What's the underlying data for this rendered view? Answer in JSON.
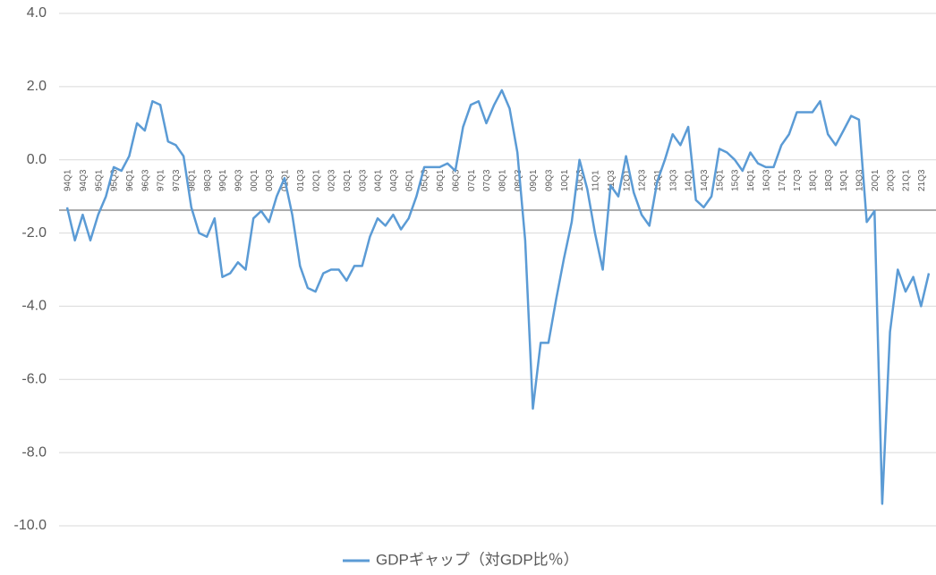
{
  "chart_data": {
    "type": "line",
    "legend_title": null,
    "categories": [
      "94Q1",
      null,
      "94Q3",
      null,
      "95Q1",
      null,
      "95Q3",
      null,
      "96Q1",
      null,
      "96Q3",
      null,
      "97Q1",
      null,
      "97Q3",
      null,
      "98Q1",
      null,
      "98Q3",
      null,
      "99Q1",
      null,
      "99Q3",
      null,
      "00Q1",
      null,
      "00Q3",
      null,
      "01Q1",
      null,
      "01Q3",
      null,
      "02Q1",
      null,
      "02Q3",
      null,
      "03Q1",
      null,
      "03Q3",
      null,
      "04Q1",
      null,
      "04Q3",
      null,
      "05Q1",
      null,
      "05Q3",
      null,
      "06Q1",
      null,
      "06Q3",
      null,
      "07Q1",
      null,
      "07Q3",
      null,
      "08Q1",
      null,
      "08Q3",
      null,
      "09Q1",
      null,
      "09Q3",
      null,
      "10Q1",
      null,
      "10Q3",
      null,
      "11Q1",
      null,
      "11Q3",
      null,
      "12Q1",
      null,
      "12Q3",
      null,
      "13Q1",
      null,
      "13Q3",
      null,
      "14Q1",
      null,
      "14Q3",
      null,
      "15Q1",
      null,
      "15Q3",
      null,
      "16Q1",
      null,
      "16Q3",
      null,
      "17Q1",
      null,
      "17Q3",
      null,
      "18Q1",
      null,
      "18Q3",
      null,
      "19Q1",
      null,
      "19Q3",
      null,
      "20Q1",
      null,
      "20Q3",
      null,
      "21Q1",
      null,
      "21Q3",
      null
    ],
    "series": [
      {
        "name": "GDPギャップ（対GDP比％）",
        "color": "#5b9bd5",
        "values": [
          -1.3,
          -2.2,
          -1.5,
          -2.2,
          -1.5,
          -1.0,
          -0.2,
          -0.3,
          0.1,
          1.0,
          0.8,
          1.6,
          1.5,
          0.5,
          0.4,
          0.1,
          -1.3,
          -2.0,
          -2.1,
          -1.6,
          -3.2,
          -3.1,
          -2.8,
          -3.0,
          -1.6,
          -1.4,
          -1.7,
          -1.0,
          -0.5,
          -1.5,
          -2.9,
          -3.5,
          -3.6,
          -3.1,
          -3.0,
          -3.0,
          -3.3,
          -2.9,
          -2.9,
          -2.1,
          -1.6,
          -1.8,
          -1.5,
          -1.9,
          -1.6,
          -1.0,
          -0.2,
          -0.2,
          -0.2,
          -0.1,
          -0.3,
          0.9,
          1.5,
          1.6,
          1.0,
          1.5,
          1.9,
          1.4,
          0.2,
          -2.2,
          -6.8,
          -5.0,
          -5.0,
          -3.8,
          -2.7,
          -1.7,
          0.0,
          -0.8,
          -2.0,
          -3.0,
          -0.7,
          -1.0,
          0.1,
          -0.9,
          -1.5,
          -1.8,
          -0.6,
          0.0,
          0.7,
          0.4,
          0.9,
          -1.1,
          -1.3,
          -1.0,
          0.3,
          0.2,
          0.0,
          -0.3,
          0.2,
          -0.1,
          -0.2,
          -0.2,
          0.4,
          0.7,
          1.3,
          1.3,
          1.3,
          1.6,
          0.7,
          0.4,
          0.8,
          1.2,
          1.1,
          -1.7,
          -1.4,
          -9.4,
          -4.7,
          -3.0,
          -3.6,
          -3.2,
          -4.0,
          -3.1
        ]
      }
    ],
    "ylim": [
      -10,
      4
    ],
    "yticks": [
      {
        "value": 4,
        "label": "4.0"
      },
      {
        "value": 2,
        "label": "2.0"
      },
      {
        "value": 0,
        "label": "0.0"
      },
      {
        "value": -2,
        "label": "-2.0"
      },
      {
        "value": -4,
        "label": "-4.0"
      },
      {
        "value": -6,
        "label": "-6.0"
      },
      {
        "value": -8,
        "label": "-8.0"
      },
      {
        "value": -10,
        "label": "-10.0"
      }
    ],
    "grid": true,
    "legend": "bottom"
  }
}
